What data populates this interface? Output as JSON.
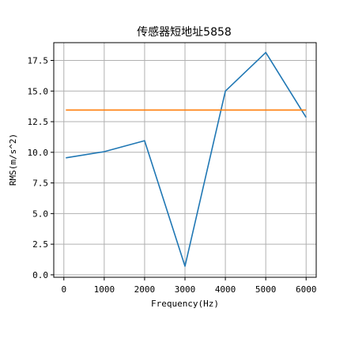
{
  "chart_data": {
    "type": "line",
    "title": "传感器短地址5858",
    "xlabel": "Frequency(Hz)",
    "ylabel": "RMS(m/s^2)",
    "xlim": [
      -250,
      6250
    ],
    "ylim": [
      -0.2,
      18.95
    ],
    "xticks": [
      0,
      1000,
      2000,
      3000,
      4000,
      5000,
      6000
    ],
    "xtick_labels": [
      "0",
      "1000",
      "2000",
      "3000",
      "4000",
      "5000",
      "6000"
    ],
    "yticks": [
      0.0,
      2.5,
      5.0,
      7.5,
      10.0,
      12.5,
      15.0,
      17.5
    ],
    "ytick_labels": [
      "0.0",
      "2.5",
      "5.0",
      "7.5",
      "10.0",
      "12.5",
      "15.0",
      "17.5"
    ],
    "grid": true,
    "series": [
      {
        "color": "#1f77b4",
        "x": [
          50,
          1000,
          2000,
          3000,
          4000,
          5000,
          6000
        ],
        "y": [
          9.55,
          10.05,
          10.95,
          0.7,
          15.0,
          18.15,
          12.85
        ]
      },
      {
        "color": "#ff7f0e",
        "x": [
          50,
          6000
        ],
        "y": [
          13.45,
          13.45
        ]
      }
    ]
  }
}
